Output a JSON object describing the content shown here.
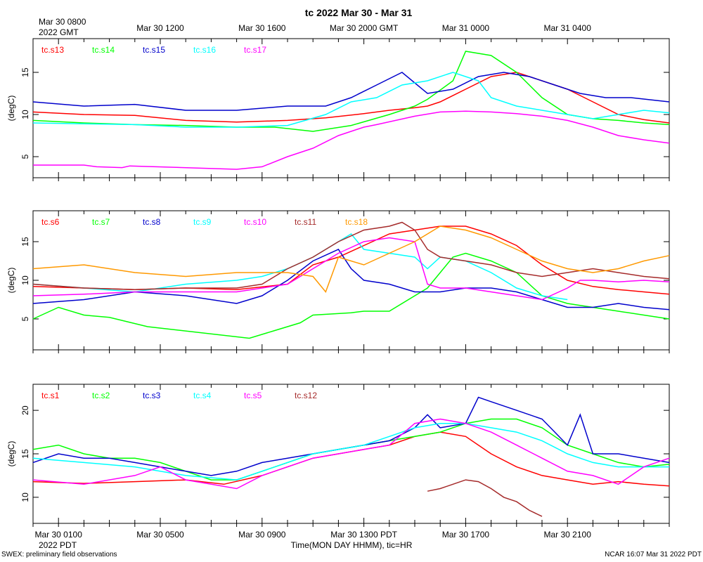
{
  "title": "tc 2022 Mar 30 - Mar 31",
  "gmt_label": {
    "line1": "Mar 30 0800",
    "line2": "2022 GMT"
  },
  "top_axis_ticks": [
    "Mar 30 1200",
    "Mar 30 1600",
    "Mar 30 2000 GMT",
    "Mar 31 0000",
    "Mar 31 0400"
  ],
  "bottom_axis_ticks": [
    "Mar 30 0100",
    "Mar 30 0500",
    "Mar 30 0900",
    "Mar 30 1300 PDT",
    "Mar 30 1700",
    "Mar 30 2100"
  ],
  "pdt_label": "2022 PDT",
  "xlabel": "Time(MON DAY HHMM), tic=HR",
  "footer_left": "SWEX: preliminary field observations",
  "footer_right": "NCAR 16:07 Mar 31 2022 PDT",
  "chart_data": [
    {
      "type": "line",
      "ylabel": "(degC)",
      "ylim": [
        2.5,
        19
      ],
      "yticks": [
        5,
        10,
        15
      ],
      "xlim": [
        0,
        25
      ],
      "x_unit": "hours since Mar 30 0000 PDT",
      "series": [
        {
          "name": "tc.s13",
          "color": "#ff0000",
          "x": [
            0,
            2,
            4,
            6,
            8,
            10,
            11.5,
            13,
            14,
            15,
            15.5,
            16,
            17,
            18,
            19,
            20,
            21,
            22,
            23,
            24,
            25
          ],
          "values": [
            10.3,
            10.0,
            9.9,
            9.3,
            9.1,
            9.3,
            9.6,
            10.1,
            10.5,
            10.8,
            11.0,
            11.5,
            13.0,
            14.5,
            15.0,
            14.0,
            13.0,
            11.5,
            10.0,
            9.4,
            9.0
          ]
        },
        {
          "name": "tc.s14",
          "color": "#00ff00",
          "x": [
            0,
            2,
            4,
            6,
            8,
            9.5,
            11,
            12.5,
            14,
            15,
            15.5,
            16.5,
            17,
            18,
            19,
            20,
            21,
            22,
            23,
            24,
            25
          ],
          "values": [
            9.3,
            9.0,
            8.8,
            8.7,
            8.5,
            8.5,
            8.0,
            8.7,
            10.0,
            11.0,
            11.8,
            14.0,
            17.5,
            17.0,
            15.0,
            12.0,
            10.0,
            9.5,
            9.3,
            9.0,
            8.8
          ]
        },
        {
          "name": "tc.s15",
          "color": "#0000cc",
          "x": [
            0,
            2,
            4,
            6,
            8,
            10,
            11.5,
            12.5,
            13.5,
            14.5,
            15.5,
            16.5,
            17.5,
            18.5,
            19.5,
            20.5,
            21.5,
            22.5,
            23.5,
            25
          ],
          "values": [
            11.5,
            11.0,
            11.2,
            10.5,
            10.5,
            11.0,
            11.0,
            12.0,
            13.5,
            15.0,
            12.5,
            13.0,
            14.5,
            15.0,
            14.5,
            13.5,
            12.5,
            12.0,
            12.0,
            11.5
          ]
        },
        {
          "name": "tc.s16",
          "color": "#00ffff",
          "x": [
            0,
            2,
            4,
            6,
            8,
            10,
            11.5,
            12.5,
            13.5,
            14.5,
            15.5,
            16.5,
            17.5,
            18,
            19,
            20,
            21,
            22,
            23,
            24,
            25
          ],
          "values": [
            9.0,
            8.9,
            8.8,
            8.5,
            8.5,
            8.7,
            10.0,
            11.5,
            12.0,
            13.5,
            14.0,
            15.0,
            14.0,
            12.0,
            11.0,
            10.5,
            10.0,
            9.5,
            10.0,
            10.5,
            10.2
          ]
        },
        {
          "name": "tc.s17",
          "color": "#ff00ff",
          "x": [
            0,
            1,
            2,
            2.5,
            3.5,
            3.8,
            8,
            9,
            10,
            11,
            12,
            13,
            13.5,
            15,
            16,
            17,
            18,
            19,
            20,
            21,
            22,
            23,
            24,
            25
          ],
          "values": [
            4.0,
            4.0,
            4.0,
            3.8,
            3.7,
            3.9,
            3.5,
            3.8,
            5.0,
            6.0,
            7.5,
            8.5,
            8.8,
            9.8,
            10.3,
            10.4,
            10.3,
            10.1,
            9.8,
            9.3,
            8.5,
            7.5,
            7.0,
            6.6
          ]
        }
      ]
    },
    {
      "type": "line",
      "ylabel": "(degC)",
      "ylim": [
        1,
        19
      ],
      "yticks": [
        5,
        10,
        15
      ],
      "xlim": [
        0,
        25
      ],
      "x_unit": "hours since Mar 30 0000 PDT",
      "series": [
        {
          "name": "tc.s6",
          "color": "#ff0000",
          "x": [
            0,
            2,
            4,
            6,
            8,
            10,
            11,
            12,
            13,
            14,
            15,
            16,
            17,
            18,
            19,
            20,
            21,
            22,
            23,
            24,
            25
          ],
          "values": [
            9.2,
            9.0,
            8.8,
            9.0,
            8.8,
            9.5,
            12.0,
            13.0,
            14.5,
            16.0,
            16.5,
            17.0,
            17.0,
            16.0,
            14.5,
            12.0,
            10.0,
            9.2,
            8.8,
            8.5,
            8.2
          ]
        },
        {
          "name": "tc.s7",
          "color": "#00ff00",
          "x": [
            0,
            1,
            2,
            3,
            4.5,
            8.5,
            9.5,
            10.5,
            11,
            12.5,
            13,
            14,
            15.5,
            16.5,
            17,
            18,
            19,
            20,
            21,
            22,
            23,
            24,
            25
          ],
          "values": [
            5.0,
            6.5,
            5.5,
            5.2,
            4.0,
            2.5,
            3.5,
            4.5,
            5.5,
            5.8,
            6.0,
            6.0,
            9.0,
            13.0,
            13.5,
            12.5,
            11.0,
            8.0,
            7.0,
            6.5,
            6.0,
            5.5,
            5.0
          ]
        },
        {
          "name": "tc.s8",
          "color": "#0000cc",
          "x": [
            0,
            2,
            4,
            6,
            8,
            9,
            10,
            11,
            12,
            12.5,
            13,
            14,
            15,
            16,
            17,
            18,
            19,
            20,
            21,
            22,
            23,
            24,
            25
          ],
          "values": [
            7.0,
            7.5,
            8.5,
            8.0,
            7.0,
            8.0,
            10.0,
            12.5,
            14.0,
            11.5,
            10.0,
            9.5,
            8.5,
            8.5,
            9.0,
            9.0,
            8.5,
            7.5,
            6.5,
            6.5,
            7.0,
            6.5,
            6.2
          ]
        },
        {
          "name": "tc.s9",
          "color": "#00ffff",
          "x": [
            0,
            2,
            4,
            6,
            8,
            9,
            10,
            11,
            12,
            12.5,
            13,
            14,
            15,
            15.5,
            16,
            17,
            18,
            19,
            20,
            21
          ],
          "values": [
            9.5,
            9.0,
            8.5,
            9.5,
            10.0,
            10.5,
            11.5,
            13.0,
            15.0,
            16.0,
            14.0,
            13.5,
            13.0,
            11.5,
            13.0,
            12.5,
            11.0,
            9.0,
            8.0,
            7.5
          ]
        },
        {
          "name": "tc.s10",
          "color": "#ff00ff",
          "x": [
            0,
            2,
            4,
            6,
            8,
            10,
            11,
            12,
            13,
            14,
            15,
            15.5,
            16,
            17,
            18,
            19,
            20,
            21,
            21.5,
            22,
            23,
            24,
            25
          ],
          "values": [
            8.0,
            8.2,
            8.5,
            8.5,
            8.5,
            9.5,
            11.5,
            13.5,
            15.0,
            15.5,
            15.0,
            9.5,
            9.0,
            9.0,
            8.5,
            8.0,
            7.5,
            9.0,
            10.0,
            10.0,
            9.8,
            10.0,
            9.8
          ]
        },
        {
          "name": "tc.s11",
          "color": "#a52a2a",
          "x": [
            0,
            2,
            4,
            6,
            8,
            9,
            10,
            11,
            12,
            13,
            14,
            14.5,
            15,
            15.5,
            16,
            17,
            18,
            19,
            20,
            21,
            22,
            23,
            24,
            25
          ],
          "values": [
            9.5,
            9.0,
            8.8,
            9.0,
            9.0,
            9.5,
            11.5,
            13.0,
            15.0,
            16.5,
            17.0,
            17.5,
            16.5,
            14.0,
            13.0,
            12.5,
            12.0,
            11.0,
            10.5,
            11.0,
            11.5,
            11.0,
            10.5,
            10.2
          ]
        },
        {
          "name": "tc.s18",
          "color": "#ff9900",
          "x": [
            0,
            2,
            4,
            6,
            8,
            10,
            11,
            11.5,
            12,
            12.5,
            13,
            14,
            15,
            15.5,
            16,
            17,
            18,
            19,
            20,
            21,
            22,
            23,
            24,
            25
          ],
          "values": [
            11.5,
            12.0,
            11.0,
            10.5,
            11.0,
            11.0,
            10.5,
            8.5,
            13.0,
            12.5,
            12.0,
            13.5,
            15.0,
            16.0,
            17.0,
            16.5,
            15.5,
            14.0,
            12.5,
            11.5,
            11.0,
            11.5,
            12.5,
            13.2
          ]
        }
      ]
    },
    {
      "type": "line",
      "ylabel": "(degC)",
      "ylim": [
        7,
        23
      ],
      "yticks": [
        10,
        15,
        20
      ],
      "xlim": [
        0,
        25
      ],
      "x_unit": "hours since Mar 30 0000 PDT",
      "series": [
        {
          "name": "tc.s1",
          "color": "#ff0000",
          "x": [
            0,
            2,
            4,
            6,
            7.5,
            9,
            10,
            11,
            12,
            13,
            14,
            15,
            16,
            17,
            18,
            19,
            20,
            21,
            22,
            23,
            24,
            25
          ],
          "values": [
            11.8,
            11.6,
            11.8,
            12.0,
            11.5,
            12.5,
            13.5,
            14.5,
            15.0,
            15.5,
            16.0,
            17.0,
            17.5,
            17.0,
            15.0,
            13.5,
            12.5,
            12.0,
            11.5,
            11.8,
            11.5,
            11.3
          ]
        },
        {
          "name": "tc.s2",
          "color": "#00ff00",
          "x": [
            0,
            1,
            2,
            3,
            4,
            5,
            6,
            7,
            8,
            9,
            10,
            11,
            12,
            13,
            14,
            15,
            16,
            17,
            18,
            19,
            20,
            21,
            22,
            23,
            24,
            25
          ],
          "values": [
            15.5,
            16.0,
            15.0,
            14.5,
            14.5,
            14.0,
            13.0,
            12.0,
            12.0,
            13.0,
            14.0,
            15.0,
            15.5,
            16.0,
            16.5,
            17.0,
            17.5,
            18.5,
            19.0,
            19.0,
            18.0,
            16.0,
            15.0,
            14.0,
            13.5,
            13.8
          ]
        },
        {
          "name": "tc.s3",
          "color": "#0000cc",
          "x": [
            0,
            1,
            2,
            3,
            4,
            5,
            6,
            7,
            8,
            9,
            10,
            11,
            12,
            13,
            14,
            15,
            15.5,
            16,
            17,
            17.5,
            18,
            19,
            20,
            21,
            21.5,
            22,
            23,
            24,
            25
          ],
          "values": [
            14.0,
            15.0,
            14.5,
            14.5,
            14.0,
            13.5,
            13.0,
            12.5,
            13.0,
            14.0,
            14.5,
            15.0,
            15.5,
            16.0,
            16.5,
            18.0,
            19.5,
            18.0,
            18.5,
            21.5,
            21.0,
            20.0,
            19.0,
            16.0,
            19.5,
            15.0,
            15.0,
            14.5,
            14.0
          ]
        },
        {
          "name": "tc.s4",
          "color": "#00ffff",
          "x": [
            0,
            2,
            4,
            6,
            8,
            9,
            10,
            11,
            12,
            13,
            14,
            15,
            16,
            17,
            18,
            19,
            20,
            21,
            22,
            23,
            24,
            25
          ],
          "values": [
            14.5,
            14.0,
            13.5,
            12.5,
            12.0,
            13.0,
            14.0,
            15.0,
            15.5,
            16.0,
            17.0,
            18.0,
            18.5,
            18.5,
            18.0,
            17.5,
            16.5,
            15.0,
            14.0,
            13.5,
            13.5,
            13.5
          ]
        },
        {
          "name": "tc.s5",
          "color": "#ff00ff",
          "x": [
            0,
            2,
            4,
            5,
            6,
            7,
            8,
            9,
            10,
            11,
            12,
            13,
            14,
            15,
            16,
            17,
            18,
            19,
            20,
            21,
            22,
            23,
            24,
            25
          ],
          "values": [
            12.0,
            11.5,
            12.5,
            13.5,
            12.0,
            11.5,
            11.0,
            12.5,
            13.5,
            14.5,
            15.0,
            15.5,
            16.0,
            18.5,
            19.0,
            18.5,
            17.5,
            16.0,
            14.5,
            13.0,
            12.5,
            11.5,
            13.5,
            14.5
          ]
        },
        {
          "name": "tc.s12",
          "color": "#a52a2a",
          "x": [
            15.5,
            16,
            16.5,
            17,
            17.5,
            18,
            18.5,
            19,
            19.5,
            20
          ],
          "values": [
            10.7,
            11.0,
            11.5,
            12.0,
            11.8,
            11.0,
            10.0,
            9.5,
            8.5,
            7.8
          ]
        }
      ]
    }
  ]
}
